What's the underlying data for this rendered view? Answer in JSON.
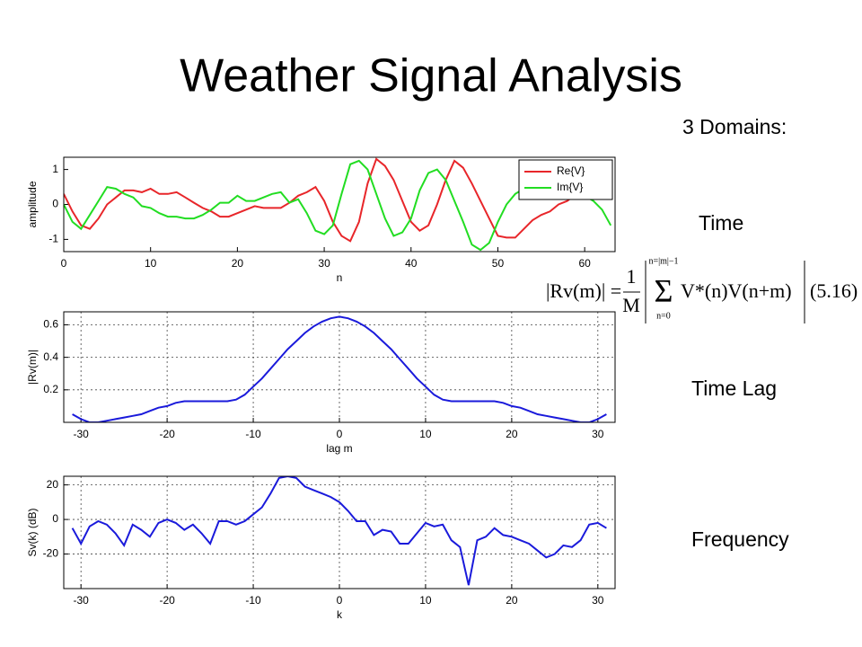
{
  "slide": {
    "title": "Weather Signal Analysis",
    "subtitle": "3 Domains:",
    "labels": [
      "Time",
      "Time Lag",
      "Frequency"
    ],
    "equation": {
      "lhs": "|Rv(m)| =",
      "num": "1",
      "den": "M",
      "sigma": "Σ",
      "sum_top": "n=|m|−1",
      "sum_bottom": "n=0",
      "body": "V*(n)V(n+m)",
      "tag": "(5.16)"
    }
  },
  "chart_data": [
    {
      "type": "line",
      "x_label": "n",
      "y_label": "amplitude",
      "x": [
        0,
        1,
        2,
        3,
        4,
        5,
        6,
        7,
        8,
        9,
        10,
        11,
        12,
        13,
        14,
        15,
        16,
        17,
        18,
        19,
        20,
        21,
        22,
        23,
        24,
        25,
        26,
        27,
        28,
        29,
        30,
        31,
        32,
        33,
        34,
        35,
        36,
        37,
        38,
        39,
        40,
        41,
        42,
        43,
        44,
        45,
        46,
        47,
        48,
        49,
        50,
        51,
        52,
        53,
        54,
        55,
        56,
        57,
        58,
        59,
        60,
        61,
        62,
        63
      ],
      "series": [
        {
          "name": "Re{V}",
          "color": "#e8262a",
          "values": [
            0.3,
            -0.2,
            -0.6,
            -0.7,
            -0.4,
            0,
            0.2,
            0.4,
            0.4,
            0.35,
            0.45,
            0.3,
            0.3,
            0.35,
            0.2,
            0.05,
            -0.1,
            -0.2,
            -0.35,
            -0.35,
            -0.25,
            -0.15,
            -0.05,
            -0.1,
            -0.1,
            -0.1,
            0.05,
            0.25,
            0.35,
            0.5,
            0.1,
            -0.5,
            -0.9,
            -1.05,
            -0.5,
            0.6,
            1.3,
            1.1,
            0.7,
            0.1,
            -0.5,
            -0.75,
            -0.6,
            0,
            0.7,
            1.25,
            1.05,
            0.6,
            0.1,
            -0.4,
            -0.9,
            -0.95,
            -0.95,
            -0.7,
            -0.45,
            -0.3,
            -0.2,
            0,
            0.1,
            0.3,
            0.25,
            0.4,
            0.6,
            0.5
          ]
        },
        {
          "name": "Im{V}",
          "color": "#22dd22",
          "values": [
            0,
            -0.5,
            -0.7,
            -0.3,
            0.1,
            0.5,
            0.45,
            0.3,
            0.2,
            -0.05,
            -0.1,
            -0.25,
            -0.35,
            -0.35,
            -0.4,
            -0.4,
            -0.3,
            -0.15,
            0.05,
            0.05,
            0.25,
            0.1,
            0.1,
            0.2,
            0.3,
            0.35,
            0.05,
            0.15,
            -0.25,
            -0.75,
            -0.85,
            -0.6,
            0.3,
            1.15,
            1.25,
            1,
            0.3,
            -0.4,
            -0.9,
            -0.8,
            -0.4,
            0.4,
            0.9,
            1,
            0.7,
            0.1,
            -0.5,
            -1.15,
            -1.3,
            -1.1,
            -0.5,
            0,
            0.3,
            0.45,
            0.5,
            0.5,
            0.4,
            0.35,
            0.3,
            0.3,
            0.25,
            0.1,
            -0.15,
            -0.6
          ]
        }
      ],
      "xlim": [
        0,
        63.5
      ],
      "xticks": [
        0,
        10,
        20,
        30,
        40,
        50,
        60
      ],
      "ylim": [
        -1.35,
        1.35
      ],
      "yticks": [
        -1,
        0,
        1
      ],
      "grid": false,
      "legend": "upper right"
    },
    {
      "type": "line",
      "x_label": "lag m",
      "y_label": "|Rv(m)|",
      "color": "#1a1adb",
      "x": [
        -31,
        -30,
        -29,
        -28,
        -27,
        -26,
        -25,
        -24,
        -23,
        -22,
        -21,
        -20,
        -19,
        -18,
        -17,
        -16,
        -15,
        -14,
        -13,
        -12,
        -11,
        -10,
        -9,
        -8,
        -7,
        -6,
        -5,
        -4,
        -3,
        -2,
        -1,
        0,
        1,
        2,
        3,
        4,
        5,
        6,
        7,
        8,
        9,
        10,
        11,
        12,
        13,
        14,
        15,
        16,
        17,
        18,
        19,
        20,
        21,
        22,
        23,
        24,
        25,
        26,
        27,
        28,
        29,
        30,
        31
      ],
      "values": [
        0.05,
        0.02,
        0,
        0,
        0.01,
        0.02,
        0.03,
        0.04,
        0.05,
        0.07,
        0.09,
        0.1,
        0.12,
        0.13,
        0.13,
        0.13,
        0.13,
        0.13,
        0.13,
        0.14,
        0.17,
        0.22,
        0.27,
        0.33,
        0.39,
        0.45,
        0.5,
        0.55,
        0.59,
        0.62,
        0.64,
        0.65,
        0.64,
        0.62,
        0.59,
        0.55,
        0.5,
        0.45,
        0.39,
        0.33,
        0.27,
        0.22,
        0.17,
        0.14,
        0.13,
        0.13,
        0.13,
        0.13,
        0.13,
        0.13,
        0.12,
        0.1,
        0.09,
        0.07,
        0.05,
        0.04,
        0.03,
        0.02,
        0.01,
        0,
        0,
        0.02,
        0.05
      ],
      "xlim": [
        -32,
        32
      ],
      "xticks": [
        -30,
        -20,
        -10,
        0,
        10,
        20,
        30
      ],
      "ylim": [
        0,
        0.68
      ],
      "yticks": [
        0.2,
        0.4,
        0.6
      ],
      "grid": true
    },
    {
      "type": "line",
      "x_label": "k",
      "y_label": "Sv(k) (dB)",
      "color": "#1a1adb",
      "x": [
        -31,
        -30,
        -29,
        -28,
        -27,
        -26,
        -25,
        -24,
        -23,
        -22,
        -21,
        -20,
        -19,
        -18,
        -17,
        -16,
        -15,
        -14,
        -13,
        -12,
        -11,
        -10,
        -9,
        -8,
        -7,
        -6,
        -5,
        -4,
        -3,
        -2,
        -1,
        0,
        1,
        2,
        3,
        4,
        5,
        6,
        7,
        8,
        9,
        10,
        11,
        12,
        13,
        14,
        15,
        16,
        17,
        18,
        19,
        20,
        21,
        22,
        23,
        24,
        25,
        26,
        27,
        28,
        29,
        30,
        31
      ],
      "values": [
        -5,
        -14,
        -4,
        -1,
        -3,
        -8,
        -15,
        -3,
        -6,
        -10,
        -2,
        0,
        -2,
        -6,
        -3,
        -8,
        -14,
        -1,
        -1,
        -3,
        -1,
        3,
        7,
        15,
        24,
        25,
        24,
        19,
        17,
        15,
        13,
        10,
        5,
        -1,
        -1,
        -9,
        -6,
        -7,
        -14,
        -14,
        -8,
        -2,
        -4,
        -3,
        -12,
        -16,
        -38,
        -12,
        -10,
        -5,
        -9,
        -10,
        -12,
        -14,
        -18,
        -22,
        -20,
        -15,
        -16,
        -12,
        -3,
        -2,
        -5
      ],
      "xlim": [
        -32,
        32
      ],
      "xticks": [
        -30,
        -20,
        -10,
        0,
        10,
        20,
        30
      ],
      "ylim": [
        -40,
        25
      ],
      "yticks": [
        -20,
        0,
        20
      ],
      "grid": true
    }
  ]
}
